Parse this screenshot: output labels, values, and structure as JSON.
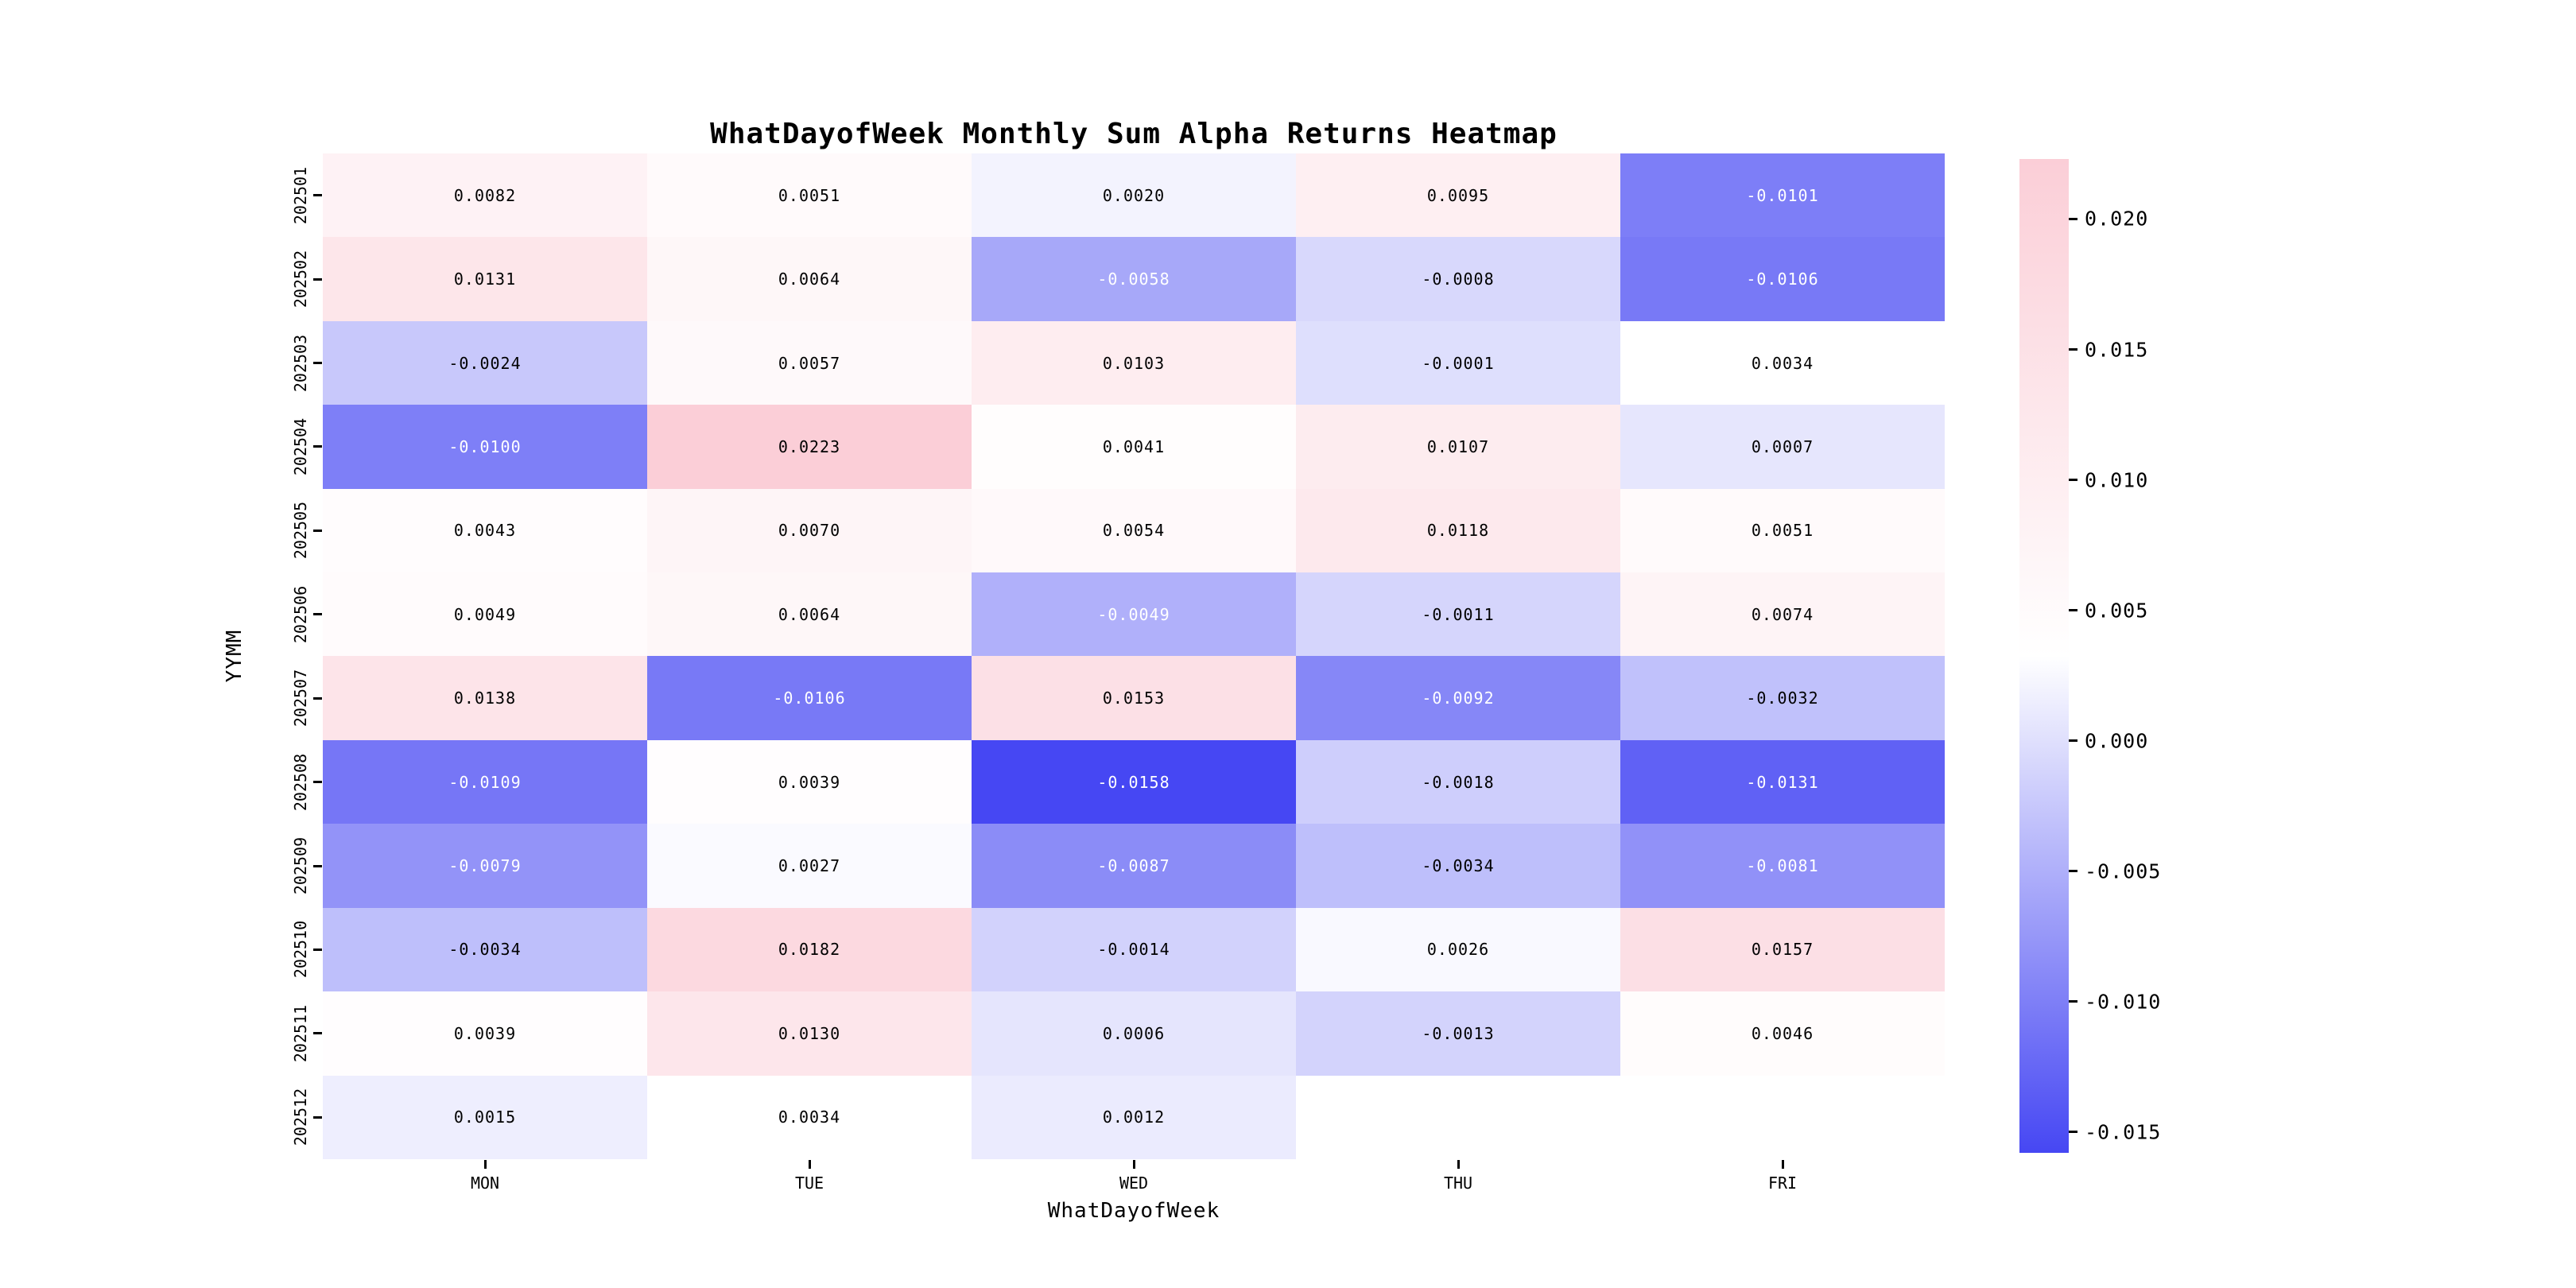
{
  "title": "WhatDayofWeek Monthly Sum Alpha Returns Heatmap",
  "chart_data": {
    "type": "heatmap",
    "title": "WhatDayofWeek Monthly Sum Alpha Returns Heatmap",
    "xlabel": "WhatDayofWeek",
    "ylabel": "YYMM",
    "x_categories": [
      "MON",
      "TUE",
      "WED",
      "THU",
      "FRI"
    ],
    "y_categories": [
      "202501",
      "202502",
      "202503",
      "202504",
      "202505",
      "202506",
      "202507",
      "202508",
      "202509",
      "202510",
      "202511",
      "202512"
    ],
    "values": [
      [
        0.0082,
        0.0051,
        0.002,
        0.0095,
        -0.0101
      ],
      [
        0.0131,
        0.0064,
        -0.0058,
        -0.0008,
        -0.0106
      ],
      [
        -0.0024,
        0.0057,
        0.0103,
        -0.0001,
        0.0034
      ],
      [
        -0.01,
        0.0223,
        0.0041,
        0.0107,
        0.0007
      ],
      [
        0.0043,
        0.007,
        0.0054,
        0.0118,
        0.0051
      ],
      [
        0.0049,
        0.0064,
        -0.0049,
        -0.0011,
        0.0074
      ],
      [
        0.0138,
        -0.0106,
        0.0153,
        -0.0092,
        -0.0032
      ],
      [
        -0.0109,
        0.0039,
        -0.0158,
        -0.0018,
        -0.0131
      ],
      [
        -0.0079,
        0.0027,
        -0.0087,
        -0.0034,
        -0.0081
      ],
      [
        -0.0034,
        0.0182,
        -0.0014,
        0.0026,
        0.0157
      ],
      [
        0.0039,
        0.013,
        0.0006,
        -0.0013,
        0.0046
      ],
      [
        0.0015,
        0.0034,
        0.0012,
        null,
        null
      ]
    ],
    "annotation_decimals": 4,
    "vmin": -0.0158,
    "vmax": 0.0223,
    "grid": false,
    "legend": "colorbar-right",
    "colormap": {
      "low": "#4647f3",
      "mid": "#ffffff",
      "high": "#fbced7",
      "annotation_dark": "#000000",
      "annotation_light": "#ffffff",
      "light_text_threshold": 0.305
    },
    "colorbar": {
      "tick_values": [
        0.02,
        0.015,
        0.01,
        0.005,
        0.0,
        -0.005,
        -0.01,
        -0.015
      ],
      "tick_labels": [
        "0.020",
        "0.015",
        "0.010",
        "0.005",
        "0.000",
        "-0.005",
        "-0.010",
        "-0.015"
      ]
    }
  }
}
